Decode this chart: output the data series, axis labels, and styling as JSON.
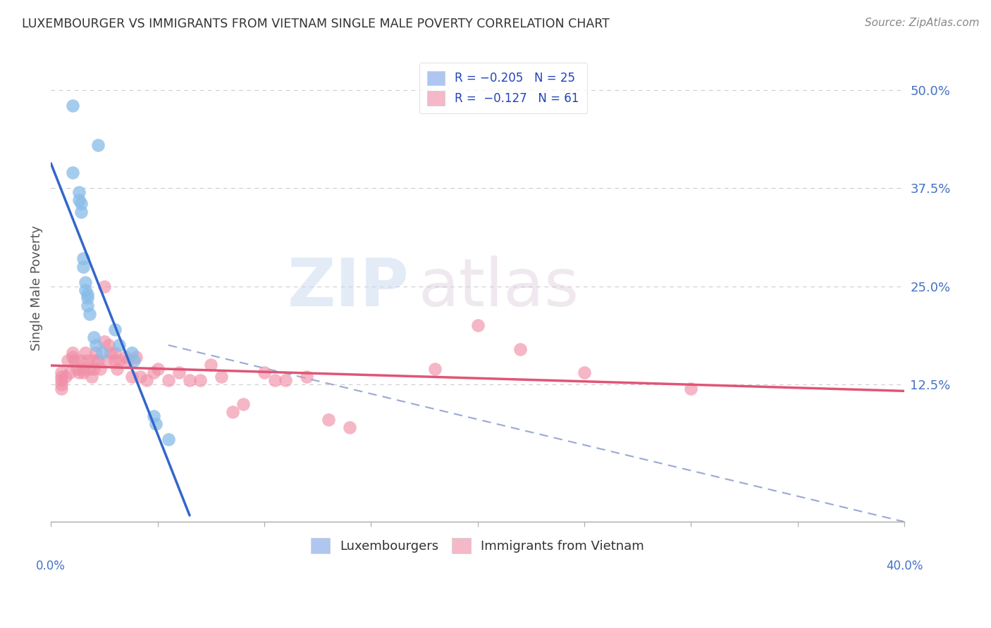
{
  "title": "LUXEMBOURGER VS IMMIGRANTS FROM VIETNAM SINGLE MALE POVERTY CORRELATION CHART",
  "source": "Source: ZipAtlas.com",
  "ylabel": "Single Male Poverty",
  "yticks_labels": [
    "50.0%",
    "37.5%",
    "25.0%",
    "12.5%"
  ],
  "ytick_vals": [
    0.5,
    0.375,
    0.25,
    0.125
  ],
  "xlim": [
    0.0,
    0.4
  ],
  "ylim": [
    -0.05,
    0.545
  ],
  "lux_x": [
    0.01,
    0.022,
    0.01,
    0.013,
    0.013,
    0.014,
    0.014,
    0.015,
    0.015,
    0.016,
    0.016,
    0.017,
    0.017,
    0.017,
    0.018,
    0.02,
    0.021,
    0.024,
    0.03,
    0.032,
    0.038,
    0.039,
    0.048,
    0.049,
    0.055
  ],
  "lux_y": [
    0.48,
    0.43,
    0.395,
    0.37,
    0.36,
    0.355,
    0.345,
    0.285,
    0.275,
    0.255,
    0.245,
    0.24,
    0.235,
    0.225,
    0.215,
    0.185,
    0.175,
    0.165,
    0.195,
    0.175,
    0.165,
    0.155,
    0.085,
    0.075,
    0.055
  ],
  "viet_x": [
    0.005,
    0.005,
    0.005,
    0.005,
    0.005,
    0.007,
    0.008,
    0.009,
    0.01,
    0.01,
    0.011,
    0.012,
    0.013,
    0.014,
    0.015,
    0.015,
    0.016,
    0.017,
    0.018,
    0.019,
    0.02,
    0.02,
    0.021,
    0.022,
    0.023,
    0.025,
    0.025,
    0.026,
    0.027,
    0.028,
    0.03,
    0.03,
    0.031,
    0.032,
    0.035,
    0.036,
    0.038,
    0.04,
    0.042,
    0.045,
    0.048,
    0.05,
    0.055,
    0.06,
    0.065,
    0.07,
    0.075,
    0.08,
    0.085,
    0.09,
    0.1,
    0.105,
    0.11,
    0.12,
    0.13,
    0.14,
    0.18,
    0.2,
    0.22,
    0.25,
    0.3
  ],
  "viet_y": [
    0.14,
    0.135,
    0.13,
    0.125,
    0.12,
    0.135,
    0.155,
    0.14,
    0.165,
    0.16,
    0.155,
    0.145,
    0.14,
    0.155,
    0.145,
    0.14,
    0.165,
    0.155,
    0.145,
    0.135,
    0.155,
    0.145,
    0.165,
    0.155,
    0.145,
    0.25,
    0.18,
    0.155,
    0.175,
    0.165,
    0.165,
    0.155,
    0.145,
    0.155,
    0.16,
    0.155,
    0.135,
    0.16,
    0.135,
    0.13,
    0.14,
    0.145,
    0.13,
    0.14,
    0.13,
    0.13,
    0.15,
    0.135,
    0.09,
    0.1,
    0.14,
    0.13,
    0.13,
    0.135,
    0.08,
    0.07,
    0.145,
    0.2,
    0.17,
    0.14,
    0.12
  ],
  "lux_color": "#88bce8",
  "viet_color": "#f090a8",
  "lux_line_color": "#3366cc",
  "viet_line_color": "#e05575",
  "dashed_line_color": "#8899cc",
  "watermark_zip": "ZIP",
  "watermark_atlas": "atlas",
  "background_color": "#ffffff",
  "grid_color": "#cccccc",
  "lux_reg_xlim": [
    0.0,
    0.065
  ],
  "viet_reg_xlim": [
    0.0,
    0.4
  ]
}
